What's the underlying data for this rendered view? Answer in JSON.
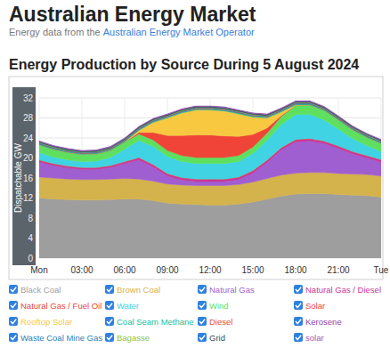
{
  "header": {
    "title": "Australian Energy Market",
    "subtitle": "Energy data from the",
    "source": "Australian Energy Market Operator"
  },
  "chart_data": {
    "type": "area",
    "title": "Energy Production by Source During 5 August 2024",
    "y_label": "Dispatchable GW",
    "stacked": true,
    "grid": true,
    "legend": "bottom",
    "x": [
      0,
      1,
      2,
      3,
      4,
      5,
      6,
      7,
      8,
      9,
      10,
      11,
      12,
      13,
      14,
      15,
      16,
      17,
      18,
      19,
      20,
      21,
      22,
      23,
      24
    ],
    "xlim": [
      0,
      24
    ],
    "xticks": [
      {
        "value": 0,
        "label": "Mon"
      },
      {
        "value": 3,
        "label": "03:00"
      },
      {
        "value": 6,
        "label": "06:00"
      },
      {
        "value": 9,
        "label": "09:00"
      },
      {
        "value": 12,
        "label": "12:00"
      },
      {
        "value": 15,
        "label": "15:00"
      },
      {
        "value": 18,
        "label": "18:00"
      },
      {
        "value": 21,
        "label": "21:00"
      },
      {
        "value": 24,
        "label": "Tue"
      }
    ],
    "ylim": [
      0,
      32
    ],
    "yticks": [
      0,
      4,
      8,
      12,
      16,
      20,
      24,
      28,
      32
    ],
    "series": [
      {
        "name": "Black Coal",
        "color": "#9e9e9e",
        "values": [
          12,
          11.8,
          11.7,
          11.6,
          11.6,
          11.7,
          11.8,
          11.8,
          11.5,
          11,
          10.8,
          10.7,
          10.6,
          10.6,
          10.8,
          11.2,
          11.8,
          12.4,
          12.8,
          12.9,
          12.9,
          12.7,
          12.6,
          12.5,
          12.2
        ]
      },
      {
        "name": "Brown Coal",
        "color": "#d4b24c",
        "values": [
          4.2,
          4.2,
          4.1,
          4.1,
          4.1,
          4.1,
          4.1,
          4,
          3.9,
          3.8,
          3.8,
          3.8,
          3.9,
          3.9,
          3.9,
          4,
          4.1,
          4.2,
          4.2,
          4.2,
          4.2,
          4.2,
          4.2,
          4.2,
          4.2
        ]
      },
      {
        "name": "Natural Gas",
        "color": "#a05fd0",
        "values": [
          3,
          2.5,
          2.2,
          2,
          2,
          2.3,
          3,
          3.8,
          2.8,
          1.6,
          1,
          0.8,
          0.8,
          0.8,
          1,
          1.8,
          3.2,
          5,
          6.2,
          6.3,
          5.8,
          5,
          4,
          3.3,
          2.8
        ]
      },
      {
        "name": "Natural Gas / Diesel",
        "color": "#c8379a",
        "values": [
          0.3,
          0.3,
          0.3,
          0.3,
          0.3,
          0.3,
          0.3,
          0.4,
          0.4,
          0.4,
          0.4,
          0.4,
          0.4,
          0.4,
          0.4,
          0.4,
          0.4,
          0.4,
          0.4,
          0.4,
          0.4,
          0.4,
          0.4,
          0.4,
          0.4
        ]
      },
      {
        "name": "Natural Gas / Fuel Oil",
        "color": "#e8443a",
        "values": [
          0.1,
          0.1,
          0.1,
          0.1,
          0.1,
          0.1,
          0.1,
          0.1,
          0.1,
          0.1,
          0.1,
          0.1,
          0.1,
          0.1,
          0.1,
          0.1,
          0.1,
          0.1,
          0.1,
          0.1,
          0.1,
          0.1,
          0.1,
          0.1,
          0.1
        ]
      },
      {
        "name": "Water",
        "color": "#3fd3e3",
        "values": [
          1.5,
          1.3,
          1.2,
          1.2,
          1.3,
          1.6,
          2.5,
          3.4,
          3.6,
          3.4,
          3.2,
          3.1,
          3.1,
          3.1,
          3.1,
          3.4,
          4,
          4.6,
          5,
          4.8,
          4.2,
          3.4,
          2.6,
          2,
          1.6
        ]
      },
      {
        "name": "Wind",
        "color": "#5ee05e",
        "values": [
          1.5,
          1.5,
          1.5,
          1.4,
          1.4,
          1.4,
          1.4,
          1.3,
          1.3,
          1.2,
          1.2,
          1.2,
          1.2,
          1.2,
          1.2,
          1.3,
          1.4,
          1.6,
          1.8,
          1.9,
          1.9,
          1.8,
          1.7,
          1.6,
          1.6
        ]
      },
      {
        "name": "Solar",
        "color": "#f04438",
        "values": [
          0,
          0,
          0,
          0,
          0,
          0,
          0,
          0.3,
          1.5,
          3,
          4,
          4.5,
          4.5,
          4.3,
          3.8,
          2.5,
          1,
          0.2,
          0,
          0,
          0,
          0,
          0,
          0,
          0
        ]
      },
      {
        "name": "Rooftop Solar",
        "color": "#f7c840",
        "values": [
          0,
          0,
          0,
          0,
          0,
          0,
          0,
          0.4,
          2,
          3.5,
          4.5,
          5,
          5,
          5,
          4.5,
          3.5,
          2,
          0.7,
          0.1,
          0,
          0,
          0,
          0,
          0,
          0
        ]
      },
      {
        "name": "Coal Seam Methane",
        "color": "#1abc9c",
        "values": [
          0.2,
          0.2,
          0.2,
          0.2,
          0.2,
          0.2,
          0.2,
          0.2,
          0.2,
          0.2,
          0.2,
          0.2,
          0.2,
          0.2,
          0.2,
          0.2,
          0.2,
          0.2,
          0.2,
          0.2,
          0.2,
          0.2,
          0.2,
          0.2,
          0.2
        ]
      },
      {
        "name": "Diesel",
        "color": "#e74c3c",
        "values": [
          0.1,
          0.1,
          0.1,
          0.1,
          0.1,
          0.1,
          0.1,
          0.1,
          0.1,
          0.1,
          0.1,
          0.1,
          0.1,
          0.1,
          0.1,
          0.1,
          0.1,
          0.1,
          0.1,
          0.1,
          0.1,
          0.1,
          0.1,
          0.1,
          0.1
        ]
      },
      {
        "name": "Kerosene",
        "color": "#8e44ad",
        "values": [
          0,
          0,
          0,
          0,
          0,
          0,
          0,
          0,
          0,
          0,
          0,
          0,
          0,
          0,
          0,
          0,
          0,
          0,
          0,
          0,
          0,
          0,
          0,
          0,
          0
        ]
      },
      {
        "name": "Waste Coal Mine Gas",
        "color": "#2c7fb8",
        "values": [
          0.1,
          0.1,
          0.1,
          0.1,
          0.1,
          0.1,
          0.1,
          0.1,
          0.1,
          0.1,
          0.1,
          0.1,
          0.1,
          0.1,
          0.1,
          0.1,
          0.1,
          0.1,
          0.1,
          0.1,
          0.1,
          0.1,
          0.1,
          0.1,
          0.1
        ]
      },
      {
        "name": "Bagasse",
        "color": "#8bc34a",
        "values": [
          0.1,
          0.1,
          0.1,
          0.1,
          0.1,
          0.1,
          0.1,
          0.1,
          0.1,
          0.1,
          0.1,
          0.1,
          0.1,
          0.1,
          0.1,
          0.1,
          0.1,
          0.1,
          0.1,
          0.1,
          0.1,
          0.1,
          0.1,
          0.1,
          0.1
        ]
      },
      {
        "name": "Grid",
        "color": "#34495e",
        "values": [
          0.2,
          0.2,
          0.2,
          0.2,
          0.2,
          0.2,
          0.2,
          0.2,
          0.2,
          0.2,
          0.2,
          0.2,
          0.2,
          0.2,
          0.2,
          0.2,
          0.2,
          0.2,
          0.2,
          0.2,
          0.2,
          0.2,
          0.2,
          0.2,
          0.2
        ]
      },
      {
        "name": "solar",
        "color": "#9b59b6",
        "values": [
          0.1,
          0.1,
          0.1,
          0.1,
          0.1,
          0.1,
          0.1,
          0.1,
          0.1,
          0.1,
          0.1,
          0.1,
          0.1,
          0.1,
          0.1,
          0.1,
          0.1,
          0.1,
          0.1,
          0.1,
          0.1,
          0.1,
          0.1,
          0.1,
          0.1
        ]
      }
    ]
  }
}
